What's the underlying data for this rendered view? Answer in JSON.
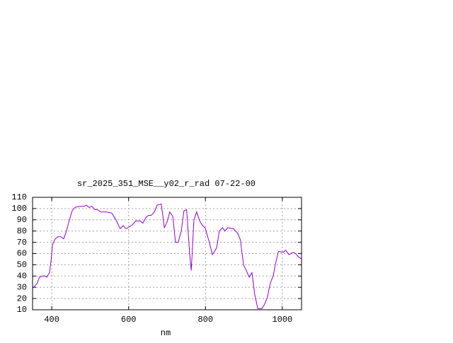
{
  "chart_data": {
    "type": "line",
    "title": "sr_2025_351_MSE__y02_r_rad 07-22-00",
    "x_label": "nm",
    "xlim": [
      350,
      1050
    ],
    "xticks": [
      400,
      600,
      800,
      1000
    ],
    "ylim": [
      10,
      110
    ],
    "yticks": [
      10,
      20,
      30,
      40,
      50,
      60,
      70,
      80,
      90,
      100,
      110
    ],
    "grid": true,
    "series": [
      {
        "color": "#9400d3",
        "x": [
          350,
          361,
          368,
          376,
          383,
          387,
          394,
          398,
          402,
          409,
          416,
          423,
          431,
          438,
          446,
          453,
          460,
          472,
          483,
          490,
          497,
          505,
          512,
          519,
          527,
          541,
          556,
          567,
          578,
          586,
          593,
          608,
          619,
          630,
          637,
          645,
          652,
          659,
          667,
          674,
          685,
          693,
          700,
          707,
          715,
          722,
          729,
          737,
          744,
          751,
          759,
          763,
          770,
          777,
          785,
          792,
          799,
          810,
          818,
          829,
          836,
          844,
          851,
          858,
          873,
          884,
          891,
          899,
          906,
          914,
          921,
          928,
          936,
          947,
          954,
          961,
          969,
          976,
          983,
          990,
          1002,
          1009,
          1017,
          1028,
          1035,
          1039,
          1050
        ],
        "values": [
          29,
          33,
          39,
          40,
          40,
          39,
          43,
          53,
          68,
          73,
          75,
          75,
          73,
          80,
          90,
          98,
          101,
          102,
          102,
          103,
          101,
          102,
          99,
          99,
          97,
          97,
          96,
          90,
          82,
          85,
          82,
          85,
          89,
          89,
          87,
          92,
          94,
          94,
          97,
          103,
          104,
          83,
          88,
          97,
          93,
          70,
          70,
          80,
          98,
          99,
          59,
          45,
          90,
          97,
          89,
          85,
          83,
          70,
          59,
          65,
          80,
          83,
          80,
          83,
          82,
          78,
          72,
          50,
          45,
          39,
          43,
          24,
          11,
          11,
          15,
          21,
          34,
          40,
          52,
          62,
          61,
          63,
          59,
          61,
          60,
          58,
          55
        ]
      }
    ]
  }
}
